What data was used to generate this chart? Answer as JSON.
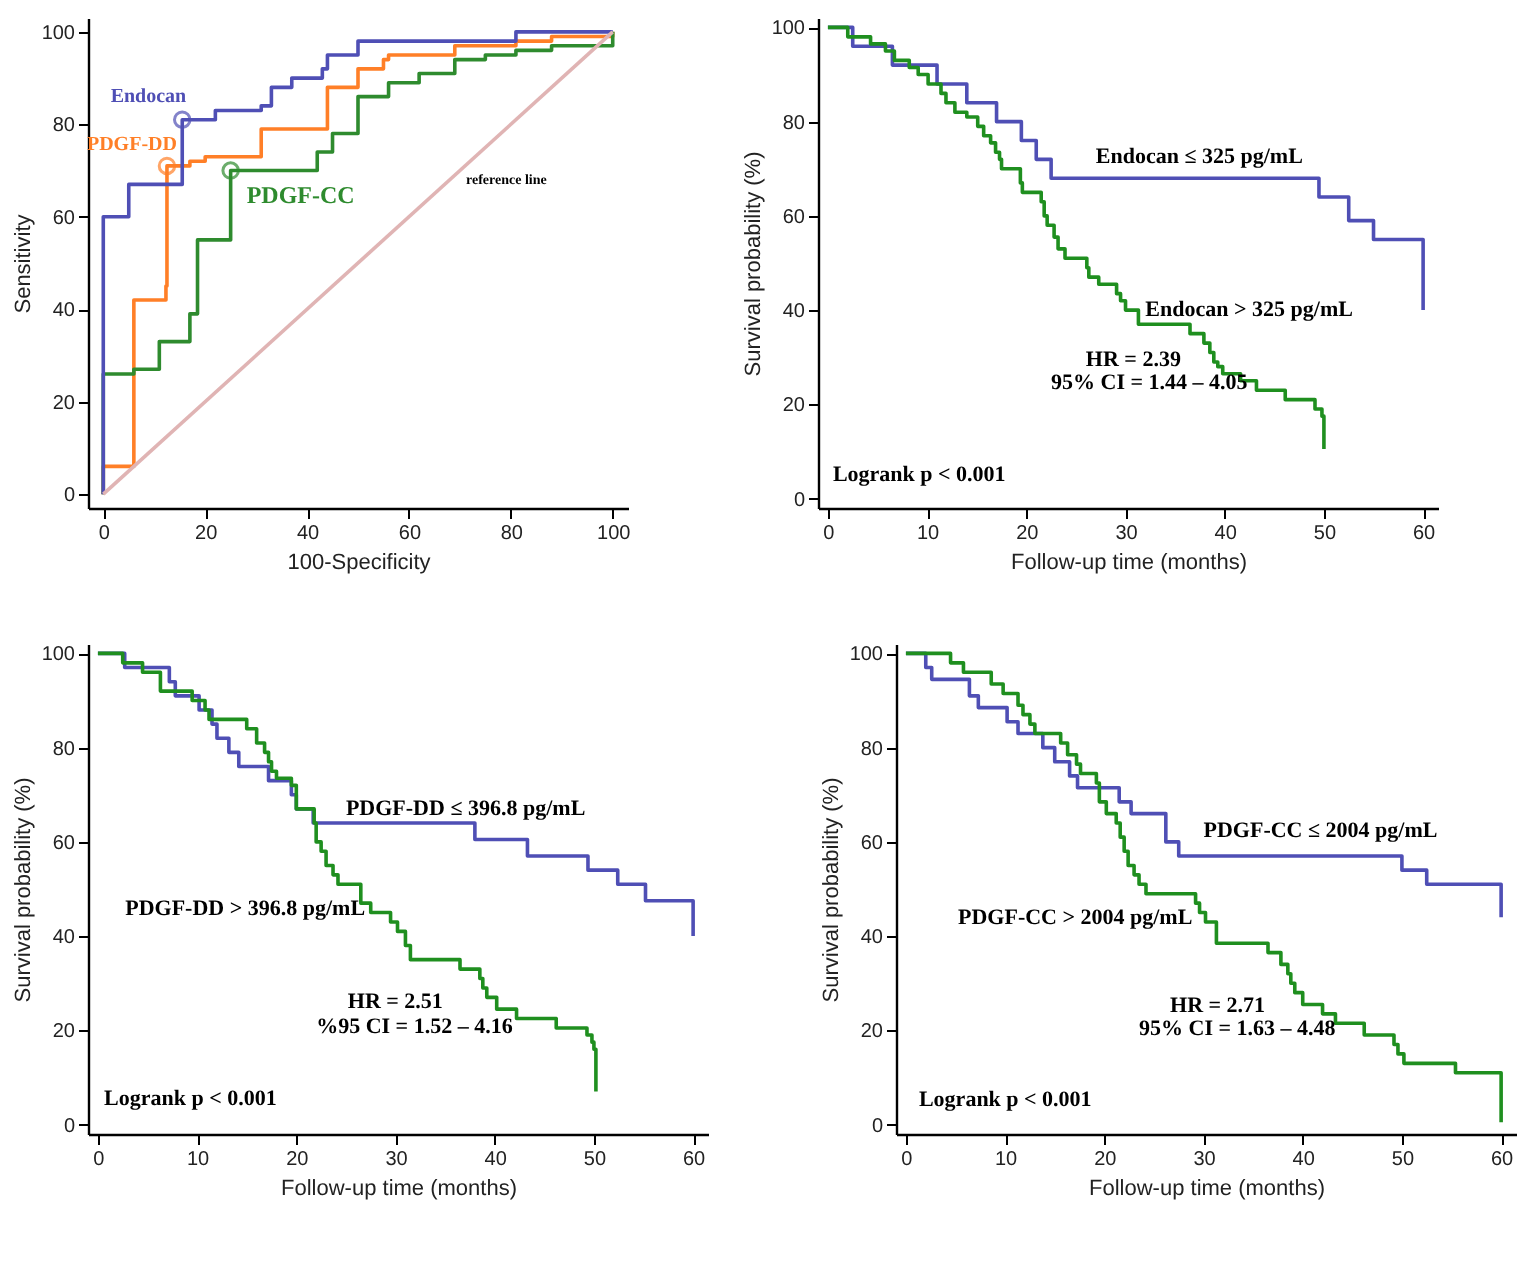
{
  "chart_data": [
    {
      "type": "step",
      "xlabel": "100-Specificity",
      "ylabel": "Sensitivity",
      "xlim": [
        -3,
        103
      ],
      "ylim": [
        -3,
        103
      ],
      "xticks": [
        0,
        20,
        40,
        60,
        80,
        100
      ],
      "yticks": [
        0,
        20,
        40,
        60,
        80,
        100
      ],
      "series": [
        {
          "color": "#ff7f27",
          "x": [
            0,
            0,
            6,
            12.3,
            12.5,
            17,
            20,
            31,
            44,
            50,
            55,
            56,
            69,
            81,
            88,
            100
          ],
          "values": [
            0,
            6,
            42,
            45,
            71,
            72,
            73,
            79,
            88,
            92,
            94,
            95,
            97,
            98,
            99,
            100
          ]
        },
        {
          "color": "#2e8b2e",
          "x": [
            0,
            0,
            6,
            11,
            17,
            18.5,
            25,
            42,
            45,
            50,
            56,
            62,
            69,
            75,
            81,
            88,
            94,
            100
          ],
          "values": [
            0,
            26,
            27,
            33,
            39,
            55,
            70,
            74,
            78,
            86,
            89,
            91,
            94,
            95,
            96,
            97,
            97,
            100
          ]
        },
        {
          "color": "#4f4fb5",
          "x": [
            0,
            0,
            5,
            15.5,
            22,
            31,
            33,
            37,
            43,
            44,
            50,
            81,
            100
          ],
          "values": [
            0,
            60,
            67,
            81,
            83,
            84,
            88,
            90,
            92,
            95,
            98,
            100,
            100
          ]
        },
        {
          "type": "line",
          "color": "#e0b4b4",
          "x": [
            0,
            100
          ],
          "values": [
            0,
            100
          ]
        },
        {
          "type": "scatter",
          "marker": "circle",
          "color": "#4f4fb5",
          "x": [
            15.5
          ],
          "values": [
            81
          ]
        },
        {
          "type": "scatter",
          "marker": "circle",
          "color": "#ff7f27",
          "x": [
            12.5
          ],
          "values": [
            71
          ]
        },
        {
          "type": "scatter",
          "marker": "circle",
          "color": "#2e8b2e",
          "x": [
            25
          ],
          "values": [
            70
          ]
        }
      ],
      "annotations": [
        {
          "text": "Endocan",
          "x": 15.5,
          "y": 81
        },
        {
          "text": "PDGF-DD",
          "x": 12.5,
          "y": 71
        },
        {
          "text": "PDGF-CC",
          "x": 25,
          "y": 70
        },
        "reference line"
      ]
    },
    {
      "type": "step",
      "xlabel": "Follow-up time (months)",
      "ylabel": "Survival probability (%)",
      "xlim": [
        -1,
        61.5
      ],
      "ylim": [
        -2,
        102
      ],
      "xticks": [
        0,
        10,
        20,
        30,
        40,
        50,
        60
      ],
      "yticks": [
        0,
        20,
        40,
        60,
        80,
        100
      ],
      "series": [
        {
          "color": "#4f4fb5",
          "x": [
            0,
            2.5,
            6.5,
            11,
            14,
            17,
            19.5,
            21,
            22.5,
            49.5,
            52.5,
            55,
            60
          ],
          "values": [
            100,
            96,
            92,
            88,
            84,
            80,
            76,
            72,
            68,
            64,
            59,
            55,
            40
          ]
        },
        {
          "color": "#1f8f1f",
          "x": [
            0,
            2,
            4.3,
            5.8,
            6.7,
            8.2,
            9.1,
            10.1,
            11.4,
            11.9,
            12.8,
            14,
            15.1,
            15.7,
            16.4,
            16.9,
            17.3,
            17.5,
            19.4,
            19.6,
            21.5,
            21.8,
            22.1,
            22.8,
            23.2,
            23.9,
            26.1,
            26.3,
            27.3,
            29.1,
            29.5,
            30,
            31.3,
            36.5,
            37.9,
            38.5,
            38.9,
            39.3,
            39.8,
            41.6,
            43.2,
            46.1,
            49.1,
            49.8,
            50
          ],
          "values": [
            100,
            98,
            96.5,
            95,
            93,
            91.5,
            90,
            88,
            86,
            84,
            82,
            81,
            79,
            77,
            75.5,
            73.5,
            72,
            70,
            67,
            65,
            63,
            60,
            58,
            55.5,
            53,
            51,
            49,
            47,
            45.5,
            43.5,
            42,
            40,
            37,
            35,
            33,
            31,
            29,
            28,
            26.5,
            25,
            23,
            21,
            19,
            17.5,
            10.5
          ]
        }
      ],
      "annotations": [
        "Endocan ≤  325 pg/mL",
        "Endocan > 325 pg/mL",
        "HR = 2.39",
        "95% CI = 1.44 – 4.05",
        "Logrank p < 0.001"
      ]
    },
    {
      "type": "step",
      "xlabel": "Follow-up time (months)",
      "ylabel": "Survival probability (%)",
      "xlim": [
        -1,
        61.5
      ],
      "ylim": [
        -2,
        102
      ],
      "xticks": [
        0,
        10,
        20,
        30,
        40,
        50,
        60
      ],
      "yticks": [
        0,
        20,
        40,
        60,
        80,
        100
      ],
      "series": [
        {
          "color": "#4f4fb5",
          "x": [
            0,
            2.7,
            7.2,
            7.8,
            10.2,
            11.5,
            12,
            13.2,
            14.2,
            17.2,
            19.5,
            20,
            21.7,
            38,
            43.3,
            49.4,
            52.4,
            55.2,
            60
          ],
          "values": [
            100,
            97,
            94,
            91,
            88,
            85,
            82,
            79,
            76,
            73,
            70,
            67,
            64,
            60.5,
            57,
            54,
            51,
            47.5,
            40
          ]
        },
        {
          "color": "#1f8f1f",
          "x": [
            0,
            2.5,
            4.5,
            6.3,
            9.5,
            10.8,
            11.2,
            15,
            16,
            16.8,
            17.2,
            17.5,
            18,
            19.5,
            20,
            21.8,
            22,
            22.5,
            23,
            23.7,
            24.2,
            26.5,
            27.5,
            29.5,
            30.2,
            31,
            31.5,
            36.5,
            38.5,
            38.8,
            39.2,
            40.2,
            42.2,
            46.2,
            49.3,
            49.8,
            50,
            50.2
          ],
          "values": [
            100,
            98,
            96,
            92,
            90,
            88,
            86,
            84,
            81,
            79,
            77,
            75,
            73.5,
            72,
            67,
            64,
            60,
            58,
            55,
            53,
            51,
            47,
            45,
            43,
            41,
            38,
            35,
            33,
            31,
            29,
            27,
            24.5,
            22.5,
            20.5,
            19,
            17.5,
            16,
            7
          ]
        }
      ],
      "annotations": [
        "PDGF-DD ≤ 396.8 pg/mL",
        "PDGF-DD > 396.8 pg/mL",
        "HR = 2.51",
        "%95 CI = 1.52 – 4.16",
        "Logrank p < 0.001"
      ]
    },
    {
      "type": "step",
      "xlabel": "Follow-up time (months)",
      "ylabel": "Survival probability (%)",
      "xlim": [
        -1,
        61.5
      ],
      "ylim": [
        -2,
        102
      ],
      "xticks": [
        0,
        10,
        20,
        30,
        40,
        50,
        60
      ],
      "yticks": [
        0,
        20,
        40,
        60,
        80,
        100
      ],
      "series": [
        {
          "color": "#4f4fb5",
          "x": [
            0,
            2,
            2.6,
            6.4,
            7.3,
            10.2,
            11.3,
            13.8,
            15,
            16.5,
            17.3,
            21.5,
            22.7,
            26.2,
            27.5,
            50,
            52.5,
            60
          ],
          "values": [
            100,
            97,
            94.5,
            91,
            88.5,
            85.5,
            83,
            80,
            77,
            74,
            71.5,
            68.5,
            66,
            60,
            57,
            54,
            51,
            44
          ]
        },
        {
          "color": "#1f8f1f",
          "x": [
            0,
            4.5,
            5.8,
            8.6,
            9.8,
            11.3,
            11.8,
            12.5,
            13,
            15.6,
            16.3,
            17.2,
            17.6,
            19.2,
            19.5,
            20.2,
            21.2,
            21.6,
            22,
            22.4,
            23,
            23.5,
            24.2,
            29.2,
            29.6,
            30.2,
            31.3,
            36.5,
            37.8,
            38.5,
            38.8,
            39.2,
            40,
            42,
            43.3,
            46.2,
            49.2,
            49.6,
            50.2,
            55.4,
            60
          ],
          "values": [
            100,
            98,
            96,
            93.5,
            91.5,
            89,
            87,
            85,
            83,
            81,
            78.5,
            76.5,
            74.5,
            72.5,
            68.5,
            66,
            64,
            61,
            58,
            55,
            53,
            51,
            49,
            47,
            45,
            43,
            38.5,
            36.5,
            34,
            32,
            30,
            28,
            25.5,
            23.5,
            21.5,
            19,
            17,
            15,
            13,
            11,
            0.5
          ]
        }
      ],
      "annotations": [
        "PDGF-CC ≤ 2004 pg/mL",
        "PDGF-CC > 2004 pg/mL",
        "HR = 2.71",
        "95% CI = 1.63 – 4.48",
        "Logrank p < 0.001"
      ]
    }
  ]
}
